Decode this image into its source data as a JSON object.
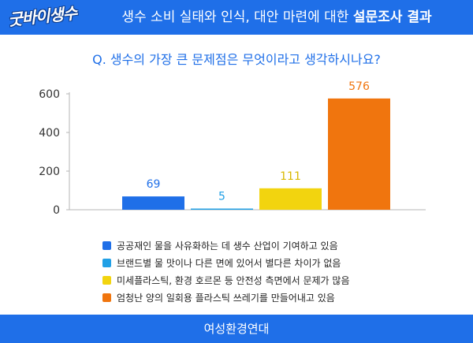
{
  "header": {
    "logo_text": "굿바이생수",
    "title_regular": "생수 소비 실태와 인식, 대안 마련에 대한",
    "title_bold": "설문조사 결과"
  },
  "question": "Q. 생수의 가장 큰 문제점은 무엇이라고 생각하시나요?",
  "chart_data": {
    "type": "bar",
    "categories": [
      "공공재인 물을 사유화하는 데 생수 산업이 기여하고 있음",
      "브랜드별 물 맛이나 다른 면에 있어서 별다른 차이가 없음",
      "미세플라스틱, 환경 호르몬 등 안전성 측면에서 문제가 많음",
      "엄청난 양의 일회용 플라스틱 쓰레기를 만들어내고 있음"
    ],
    "values": [
      69,
      5,
      111,
      576
    ],
    "value_labels": [
      "69",
      "5",
      "111",
      "576"
    ],
    "colors": [
      "#1f6fe8",
      "#21a0e6",
      "#f2d40f",
      "#f0750e"
    ],
    "label_colors": [
      "#1f6fe8",
      "#21a0e6",
      "#d9b800",
      "#f0750e"
    ],
    "ylim": [
      0,
      600
    ],
    "yticks": [
      "0",
      "200",
      "400",
      "600"
    ],
    "ytick_values": [
      0,
      200,
      400,
      600
    ],
    "grid": false,
    "legend_position": "bottom"
  },
  "footer": {
    "org": "여성환경연대"
  }
}
